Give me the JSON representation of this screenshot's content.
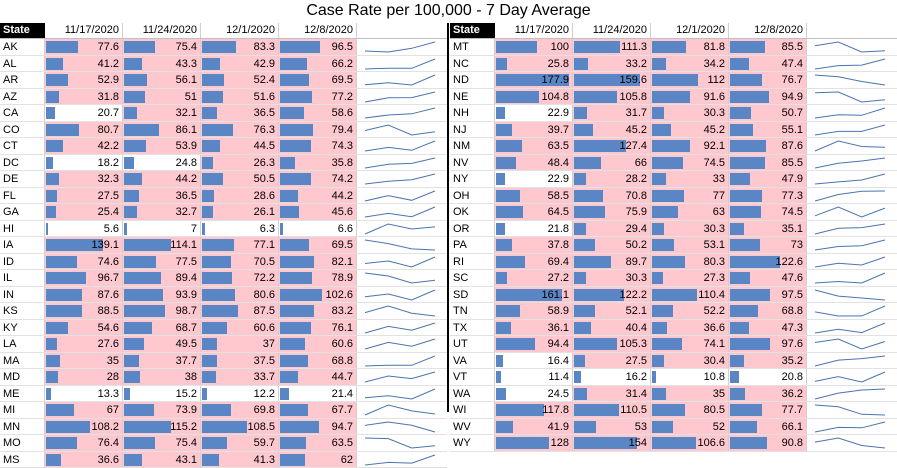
{
  "title": "Case Rate per 100,000 - 7 Day Average",
  "colors": {
    "bar": "#5b86c6",
    "high": "#ffc7ce",
    "low": "#ffffff",
    "spark": "#4a74b0"
  },
  "chart_data": {
    "type": "table",
    "title": "Case Rate per 100,000 - 7 Day Average",
    "state_header": "State",
    "dates": [
      "11/17/2020",
      "11/24/2020",
      "12/1/2020",
      "12/8/2020"
    ],
    "columns_note": "",
    "left": [
      {
        "state": "AK",
        "values": [
          77.6,
          75.4,
          83.3,
          96.5
        ]
      },
      {
        "state": "AL",
        "values": [
          41.2,
          43.3,
          42.9,
          66.2
        ]
      },
      {
        "state": "AR",
        "values": [
          52.9,
          56.1,
          52.4,
          69.5
        ]
      },
      {
        "state": "AZ",
        "values": [
          31.8,
          51,
          51.6,
          77.2
        ]
      },
      {
        "state": "CA",
        "values": [
          20.7,
          32.1,
          36.5,
          58.6
        ]
      },
      {
        "state": "CO",
        "values": [
          80.7,
          86.1,
          76.3,
          79.4
        ]
      },
      {
        "state": "CT",
        "values": [
          42.2,
          53.9,
          44.5,
          74.3
        ]
      },
      {
        "state": "DC",
        "values": [
          18.2,
          24.8,
          26.3,
          35.8
        ]
      },
      {
        "state": "DE",
        "values": [
          32.3,
          44.2,
          50.5,
          74.2
        ]
      },
      {
        "state": "FL",
        "values": [
          27.5,
          36.5,
          28.6,
          44.2
        ]
      },
      {
        "state": "GA",
        "values": [
          25.4,
          32.7,
          26.1,
          45.6
        ]
      },
      {
        "state": "HI",
        "values": [
          5.6,
          7,
          6.3,
          6.6
        ]
      },
      {
        "state": "IA",
        "values": [
          139.1,
          114.1,
          77.1,
          69.5
        ]
      },
      {
        "state": "ID",
        "values": [
          74.6,
          77.5,
          70.5,
          82.1
        ]
      },
      {
        "state": "IL",
        "values": [
          96.7,
          89.4,
          72.2,
          78.9
        ]
      },
      {
        "state": "IN",
        "values": [
          87.6,
          93.9,
          80.6,
          102.6
        ]
      },
      {
        "state": "KS",
        "values": [
          88.5,
          98.7,
          87.5,
          83.2
        ]
      },
      {
        "state": "KY",
        "values": [
          54.6,
          68.7,
          60.6,
          76.1
        ]
      },
      {
        "state": "LA",
        "values": [
          27.6,
          49.5,
          37,
          60.6
        ]
      },
      {
        "state": "MA",
        "values": [
          35,
          37.7,
          37.5,
          68.8
        ]
      },
      {
        "state": "MD",
        "values": [
          28,
          38,
          33.7,
          44.7
        ]
      },
      {
        "state": "ME",
        "values": [
          13.3,
          15.2,
          12.2,
          21.4
        ]
      },
      {
        "state": "MI",
        "values": [
          67,
          73.9,
          69.8,
          67.7
        ]
      },
      {
        "state": "MN",
        "values": [
          108.2,
          115.2,
          108.5,
          94.7
        ]
      },
      {
        "state": "MO",
        "values": [
          76.4,
          75.4,
          59.7,
          63.5
        ]
      },
      {
        "state": "MS",
        "values": [
          36.6,
          43.1,
          41.3,
          62
        ]
      }
    ],
    "right": [
      {
        "state": "MT",
        "values": [
          100,
          111.3,
          81.8,
          85.5
        ]
      },
      {
        "state": "NC",
        "values": [
          25.8,
          33.2,
          34.2,
          47.4
        ]
      },
      {
        "state": "ND",
        "values": [
          177.9,
          159.6,
          112,
          76.7
        ]
      },
      {
        "state": "NE",
        "values": [
          104.8,
          105.8,
          91.6,
          94.9
        ]
      },
      {
        "state": "NH",
        "values": [
          22.9,
          31.7,
          30.3,
          50.7
        ]
      },
      {
        "state": "NJ",
        "values": [
          39.7,
          45.2,
          45.2,
          55.1
        ]
      },
      {
        "state": "NM",
        "values": [
          63.5,
          127.4,
          92.1,
          87.6
        ]
      },
      {
        "state": "NV",
        "values": [
          48.4,
          66,
          74.5,
          85.5
        ]
      },
      {
        "state": "NY",
        "values": [
          22.9,
          28.2,
          33,
          47.9
        ]
      },
      {
        "state": "OH",
        "values": [
          58.5,
          70.8,
          77,
          77.3
        ]
      },
      {
        "state": "OK",
        "values": [
          64.5,
          75.9,
          63,
          74.5
        ]
      },
      {
        "state": "OR",
        "values": [
          21.8,
          29.4,
          30.3,
          35.1
        ]
      },
      {
        "state": "PA",
        "values": [
          37.8,
          50.2,
          53.1,
          73
        ]
      },
      {
        "state": "RI",
        "values": [
          69.4,
          89.7,
          80.3,
          122.6
        ]
      },
      {
        "state": "SC",
        "values": [
          27.2,
          30.3,
          27.3,
          47.6
        ]
      },
      {
        "state": "SD",
        "values": [
          161.1,
          122.2,
          110.4,
          97.5
        ]
      },
      {
        "state": "TN",
        "values": [
          58.9,
          52.1,
          52.2,
          68.8
        ]
      },
      {
        "state": "TX",
        "values": [
          36.1,
          40.4,
          36.6,
          47.3
        ]
      },
      {
        "state": "UT",
        "values": [
          94.4,
          105.3,
          74.1,
          97.6
        ]
      },
      {
        "state": "VA",
        "values": [
          16.4,
          27.5,
          30.4,
          35.2
        ]
      },
      {
        "state": "VT",
        "values": [
          11.4,
          16.2,
          10.8,
          20.8
        ]
      },
      {
        "state": "WA",
        "values": [
          24.5,
          31.4,
          35,
          36.2
        ]
      },
      {
        "state": "WI",
        "values": [
          117.8,
          110.5,
          80.5,
          77.7
        ]
      },
      {
        "state": "WV",
        "values": [
          41.9,
          53,
          52,
          66.1
        ]
      },
      {
        "state": "WY",
        "values": [
          128,
          154,
          106.6,
          90.8
        ]
      }
    ],
    "highlight_threshold": 25,
    "bar_max": 180
  }
}
